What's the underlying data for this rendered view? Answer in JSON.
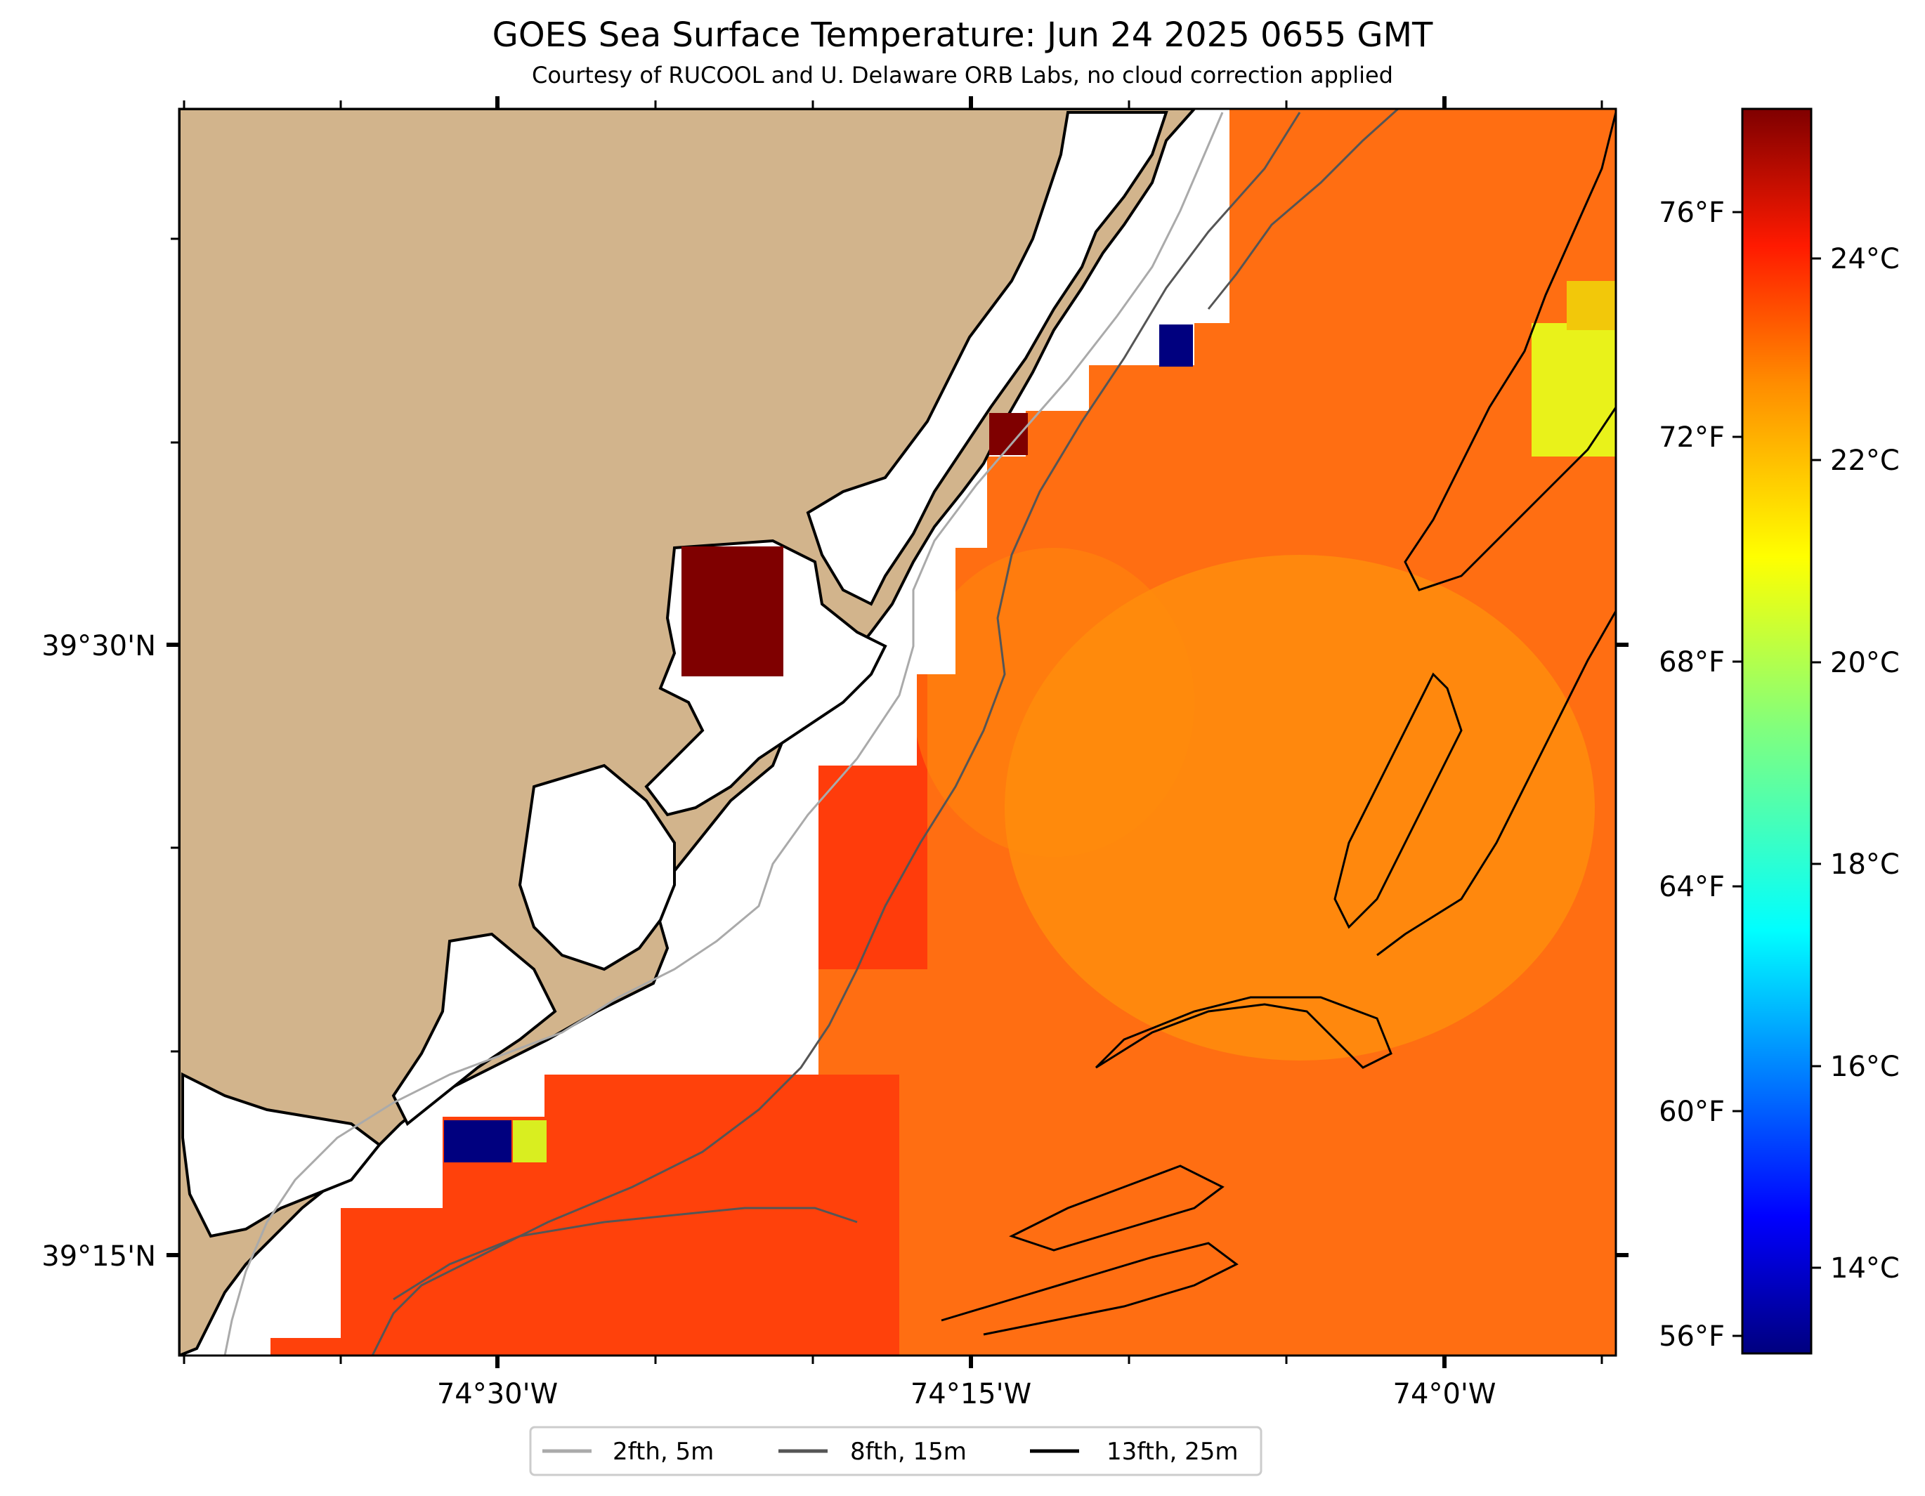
{
  "title": "GOES Sea Surface Temperature: Jun 24 2025 0655 GMT",
  "subtitle": "Courtesy of RUCOOL and U. Delaware ORB Labs, no cloud correction applied",
  "map": {
    "lon_labels": [
      "74°30'W",
      "74°15'W",
      "74°0'W"
    ],
    "lat_labels": [
      "39°30'N",
      "39°15'N"
    ],
    "land_color": "#d2b48c",
    "ocean_color": "#ff7a14",
    "chart_data": {
      "type": "heatmap",
      "variable": "Sea Surface Temperature",
      "colormap": "jet",
      "units": "°C",
      "clim": [
        12.6,
        26.3
      ],
      "anomalies": [
        {
          "description": "inland bay pixel",
          "value_c": 26.3
        },
        {
          "description": "nearshore cool pixel",
          "value_c": 12.8
        },
        {
          "description": "nearshore cool pixel south",
          "value_c": 12.8
        },
        {
          "description": "nearshore warm-yellow pixel south",
          "value_c": 21.5
        },
        {
          "description": "offshore yellow patch NE",
          "value_c": 21.8
        }
      ]
    }
  },
  "colorbar": {
    "c_labels": [
      "24°C",
      "22°C",
      "20°C",
      "18°C",
      "16°C",
      "14°C"
    ],
    "c_values": [
      24,
      22,
      20,
      18,
      16,
      14
    ],
    "f_labels": [
      "76°F",
      "72°F",
      "68°F",
      "64°F",
      "60°F",
      "56°F"
    ],
    "f_values": [
      76,
      72,
      68,
      64,
      60,
      56
    ],
    "colors": [
      "#00007f",
      "#0000ff",
      "#007fff",
      "#00ffff",
      "#7fff7f",
      "#ffff00",
      "#ff7f00",
      "#ff0000",
      "#7f0000"
    ]
  },
  "legend": {
    "items": [
      {
        "label": "2fth, 5m",
        "color": "#aaaaaa"
      },
      {
        "label": "8fth, 15m",
        "color": "#555555"
      },
      {
        "label": "13fth, 25m",
        "color": "#000000"
      }
    ]
  }
}
